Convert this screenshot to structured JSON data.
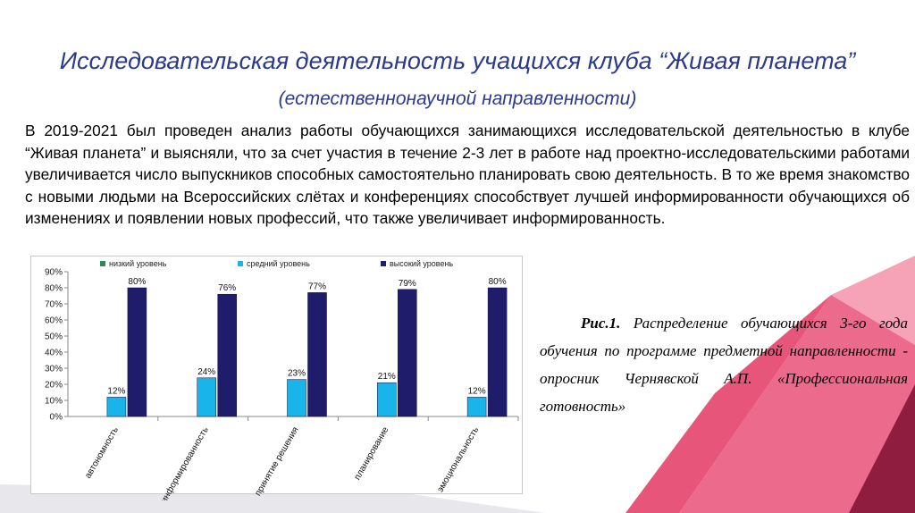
{
  "slide": {
    "title_main": "Исследовательская деятельность  учащихся клуба “Живая планета”",
    "title_sub": "(естественнонаучной направленности)",
    "intro": "В 2019-2021 был проведен анализ работы обучающихся занимающихся исследовательской деятельностью в клубе “Живая планета” и выясняли, что за счет участия в течение 2-3 лет в работе над проектно-исследовательскими работами увеличивается число выпускников способных самостоятельно планировать свою деятельность. В то же время знакомство с новыми людьми на Всероссийских слётах и конференциях способствует  лучшей информированности обучающихся об изменениях  и появлении новых профессий, что также увеличивает  информированность.",
    "caption_bold": "Рис.1.",
    "caption_text": " Распределение  обучающихся 3-го года обучения по программе  предметной направленности - опросник Чернявской А.П. «Профессиональная готовность»"
  },
  "chart_data": {
    "type": "bar",
    "categories": [
      "автономность",
      "информированность",
      "принятие решения",
      "планирование",
      "эмоциональность"
    ],
    "series": [
      {
        "name": "низкий уровень",
        "color": "#2e8b57",
        "values": [
          0,
          0,
          0,
          0,
          0
        ],
        "labels": [
          "",
          "",
          "",
          "",
          ""
        ]
      },
      {
        "name": "средний уровень",
        "color": "#19b4ea",
        "values": [
          12,
          24,
          23,
          21,
          12
        ],
        "labels": [
          "12%",
          "24%",
          "23%",
          "21%",
          "12%"
        ]
      },
      {
        "name": "высокий уровень",
        "color": "#1f1d6b",
        "values": [
          80,
          76,
          77,
          79,
          80
        ],
        "labels": [
          "80%",
          "76%",
          "77%",
          "79%",
          "80%"
        ]
      }
    ],
    "yticks": [
      "0%",
      "10%",
      "20%",
      "30%",
      "40%",
      "50%",
      "60%",
      "70%",
      "80%",
      "90%"
    ],
    "ylim": [
      0,
      90
    ],
    "legend": "top"
  },
  "colors": {
    "title": "#2b3a8c",
    "deco_pink": "#e8557a",
    "deco_light": "#f6a3b8",
    "deco_dark": "#8f1d3f"
  }
}
